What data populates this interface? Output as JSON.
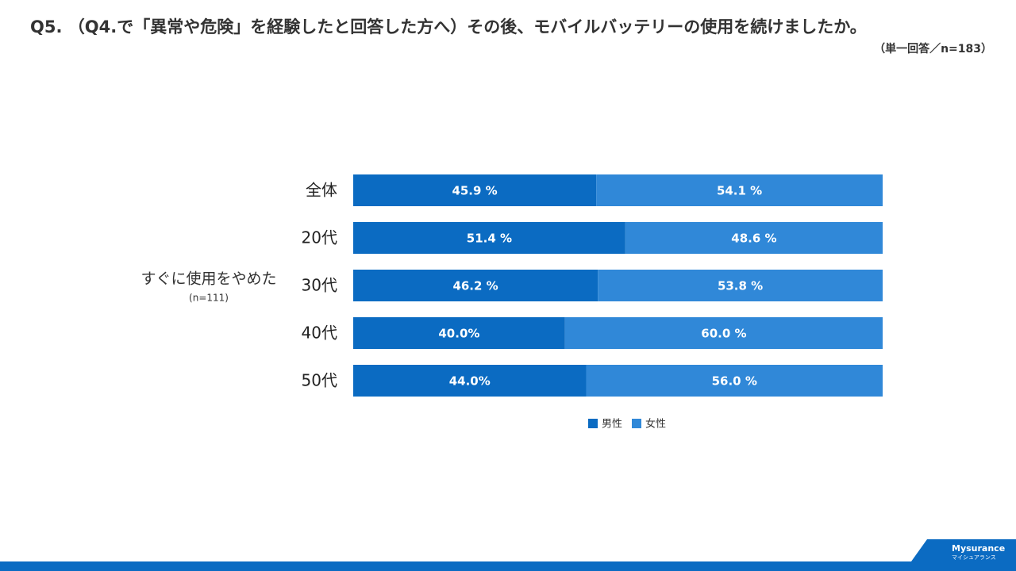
{
  "chart_data": {
    "type": "stacked-bar-horizontal",
    "title": "Q5. （Q4.で「異常や危険」を経験したと回答した方へ）その後、モバイルバッテリーの使用を続けましたか。",
    "subtitle": "（単一回答／n=183）",
    "group_label": "すぐに使用をやめた",
    "group_n": "(n=111)",
    "categories": [
      "全体",
      "20代",
      "30代",
      "40代",
      "50代"
    ],
    "xlim": [
      0,
      100
    ],
    "series": [
      {
        "name": "男性",
        "color": "#0b6bc2",
        "values": [
          45.9,
          51.4,
          46.2,
          40.0,
          44.0
        ],
        "value_labels": [
          "45.9 %",
          "51.4 %",
          "46.2 %",
          "40.0%",
          "44.0%"
        ]
      },
      {
        "name": "女性",
        "color": "#3088d8",
        "values": [
          54.1,
          48.6,
          53.8,
          60.0,
          56.0
        ],
        "value_labels": [
          "54.1 %",
          "48.6 %",
          "53.8 %",
          "60.0 %",
          "56.0 %"
        ]
      }
    ],
    "legend": "bottom"
  },
  "brand": {
    "name": "Mysurance",
    "name_kana": "マイシュアランス"
  }
}
